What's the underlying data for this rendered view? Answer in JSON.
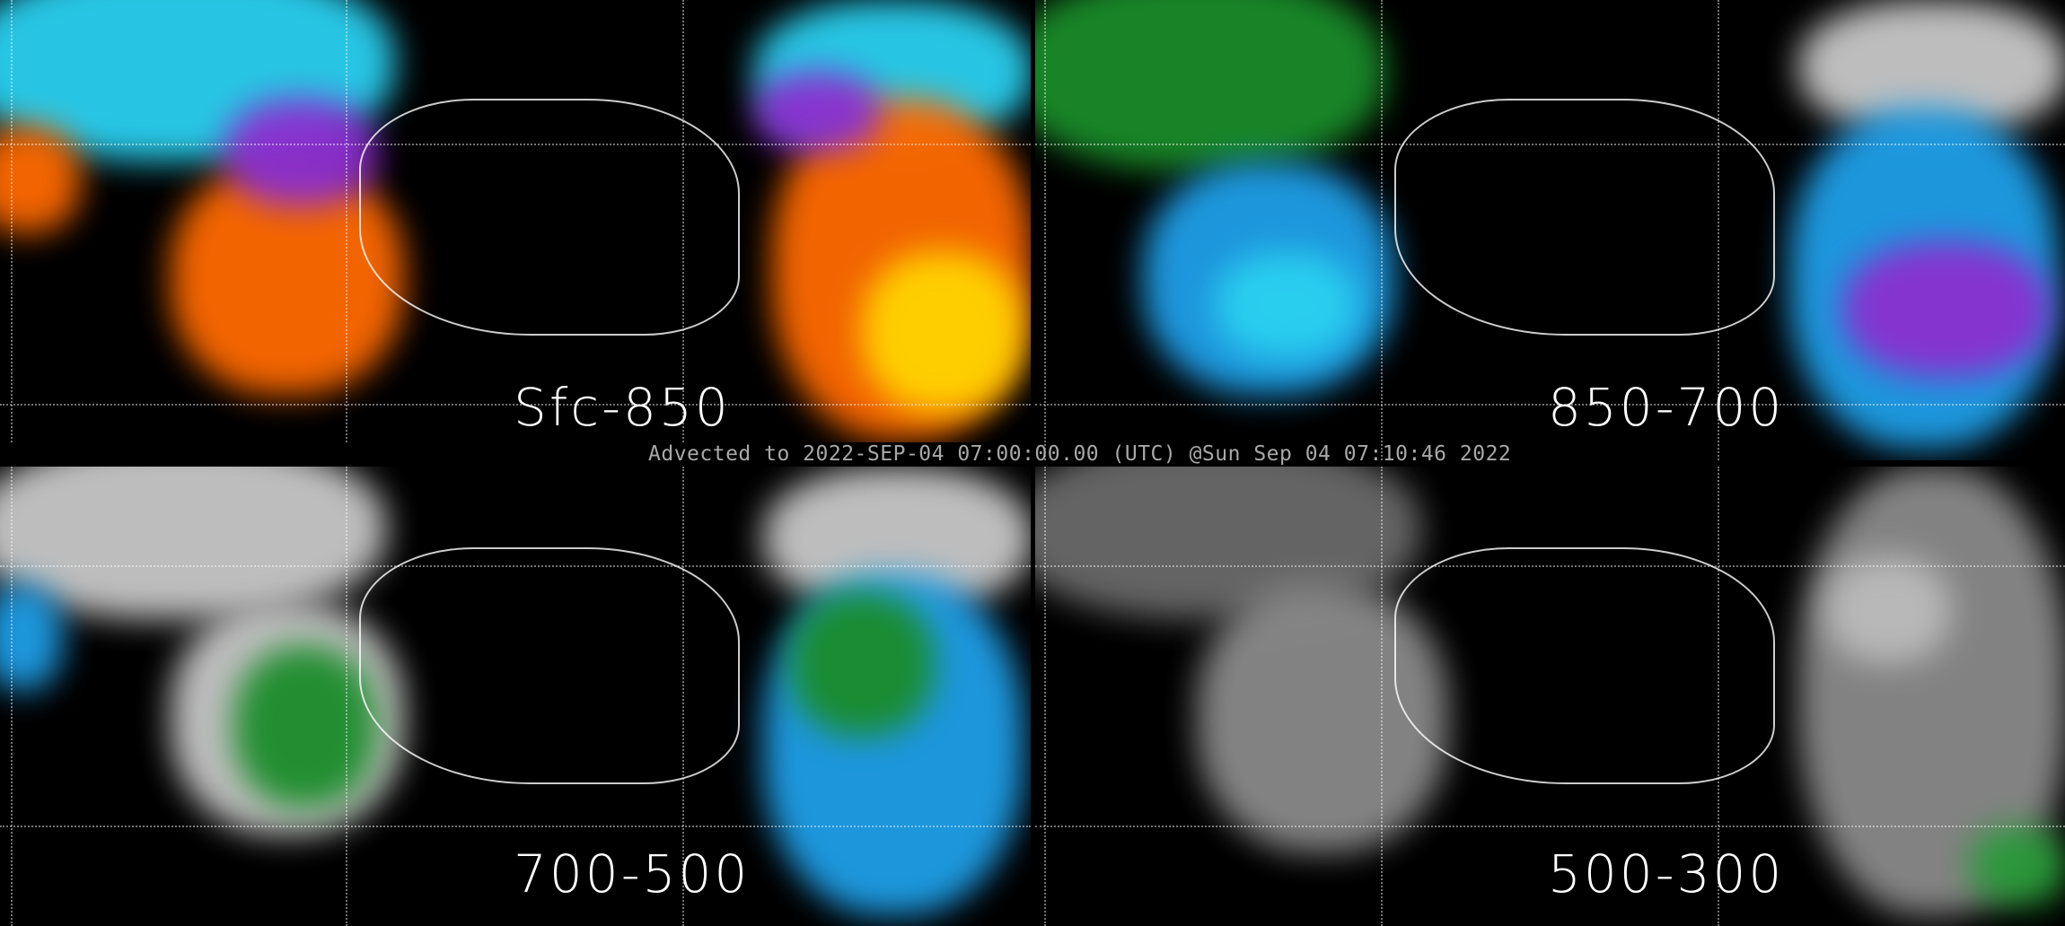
{
  "title": "Advected to 2022-SEP-04 07:00:00.00 (UTC) @Sun Sep 04 07:10:46 2022",
  "panels": [
    {
      "label": "Sfc-850",
      "palette": [
        "#ff6a00",
        "#8b2fd0",
        "#2ad0f0",
        "#ffd400"
      ]
    },
    {
      "label": "850-700",
      "palette": [
        "#1f9fe8",
        "#2ad0f0",
        "#1a8c2a",
        "#8b2fd0"
      ]
    },
    {
      "label": "700-500",
      "palette": [
        "#c8c8c8",
        "#1f9fe8",
        "#1a8c2a",
        "#2ad0f0"
      ]
    },
    {
      "label": "500-300",
      "palette": [
        "#8a8a8a",
        "#bbbbbb",
        "#6a6a6a",
        "#2a9a3a"
      ]
    }
  ]
}
